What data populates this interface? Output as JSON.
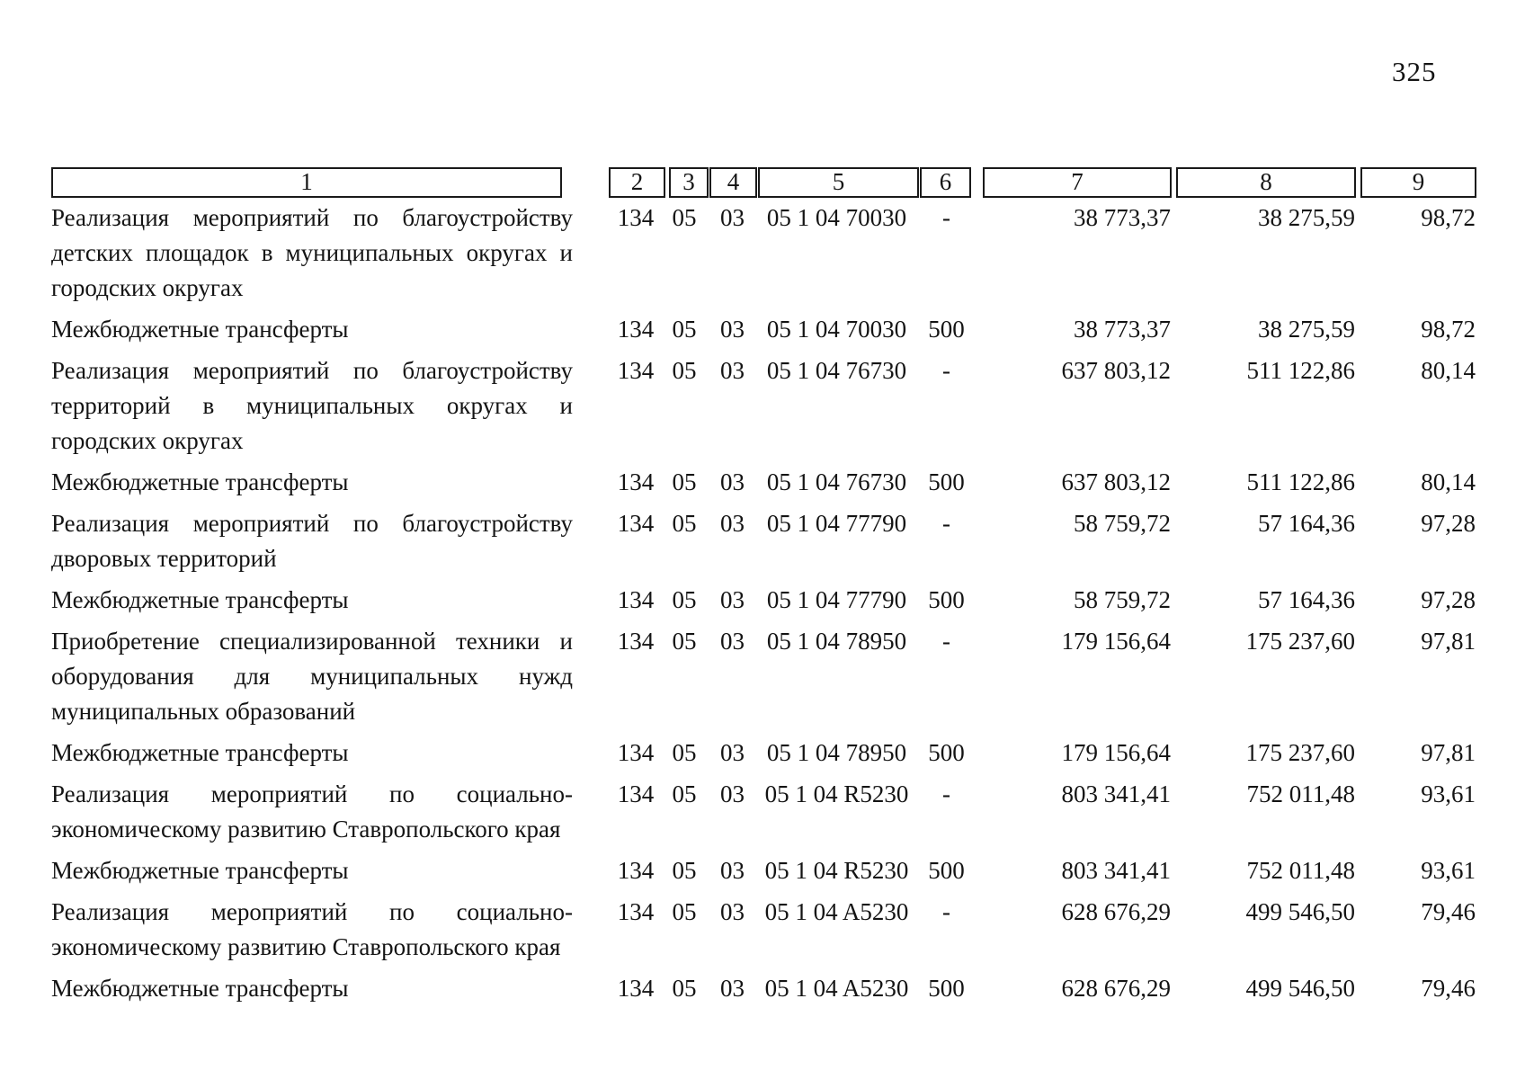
{
  "page": {
    "number": "325"
  },
  "table": {
    "header": [
      "1",
      "2",
      "3",
      "4",
      "5",
      "6",
      "7",
      "8",
      "9"
    ],
    "rows": [
      {
        "c1": "Реализация мероприятий по благоустройству детских площадок в муниципальных округах и городских округах",
        "c2": "134",
        "c3": "05",
        "c4": "03",
        "c5": "05 1 04 70030",
        "c6": "-",
        "c7": "38 773,37",
        "c8": "38 275,59",
        "c9": "98,72"
      },
      {
        "c1": "Межбюджетные трансферты",
        "c2": "134",
        "c3": "05",
        "c4": "03",
        "c5": "05 1 04 70030",
        "c6": "500",
        "c7": "38 773,37",
        "c8": "38 275,59",
        "c9": "98,72"
      },
      {
        "c1": "Реализация мероприятий по благоустройству территорий в муниципальных округах и городских округах",
        "c2": "134",
        "c3": "05",
        "c4": "03",
        "c5": "05 1 04 76730",
        "c6": "-",
        "c7": "637 803,12",
        "c8": "511 122,86",
        "c9": "80,14"
      },
      {
        "c1": "Межбюджетные трансферты",
        "c2": "134",
        "c3": "05",
        "c4": "03",
        "c5": "05 1 04 76730",
        "c6": "500",
        "c7": "637 803,12",
        "c8": "511 122,86",
        "c9": "80,14"
      },
      {
        "c1": "Реализация мероприятий по благоустройству дворовых территорий",
        "c2": "134",
        "c3": "05",
        "c4": "03",
        "c5": "05 1 04 77790",
        "c6": "-",
        "c7": "58 759,72",
        "c8": "57 164,36",
        "c9": "97,28"
      },
      {
        "c1": "Межбюджетные трансферты",
        "c2": "134",
        "c3": "05",
        "c4": "03",
        "c5": "05 1 04 77790",
        "c6": "500",
        "c7": "58 759,72",
        "c8": "57 164,36",
        "c9": "97,28"
      },
      {
        "c1": "Приобретение специализированной техники и оборудования для муниципальных нужд муниципальных образований",
        "c2": "134",
        "c3": "05",
        "c4": "03",
        "c5": "05 1 04 78950",
        "c6": "-",
        "c7": "179 156,64",
        "c8": "175 237,60",
        "c9": "97,81"
      },
      {
        "c1": "Межбюджетные трансферты",
        "c2": "134",
        "c3": "05",
        "c4": "03",
        "c5": "05 1 04 78950",
        "c6": "500",
        "c7": "179 156,64",
        "c8": "175 237,60",
        "c9": "97,81"
      },
      {
        "c1": "Реализация мероприятий по социально-экономическому развитию Ставропольского края",
        "c2": "134",
        "c3": "05",
        "c4": "03",
        "c5": "05 1 04 R5230",
        "c6": "-",
        "c7": "803 341,41",
        "c8": "752 011,48",
        "c9": "93,61"
      },
      {
        "c1": "Межбюджетные трансферты",
        "c2": "134",
        "c3": "05",
        "c4": "03",
        "c5": "05 1 04 R5230",
        "c6": "500",
        "c7": "803 341,41",
        "c8": "752 011,48",
        "c9": "93,61"
      },
      {
        "c1": "Реализация мероприятий по социально-экономическому развитию Ставропольского края",
        "c2": "134",
        "c3": "05",
        "c4": "03",
        "c5": "05 1 04 A5230",
        "c6": "-",
        "c7": "628 676,29",
        "c8": "499 546,50",
        "c9": "79,46"
      },
      {
        "c1": "Межбюджетные трансферты",
        "c2": "134",
        "c3": "05",
        "c4": "03",
        "c5": "05 1 04 A5230",
        "c6": "500",
        "c7": "628 676,29",
        "c8": "499 546,50",
        "c9": "79,46"
      }
    ]
  }
}
